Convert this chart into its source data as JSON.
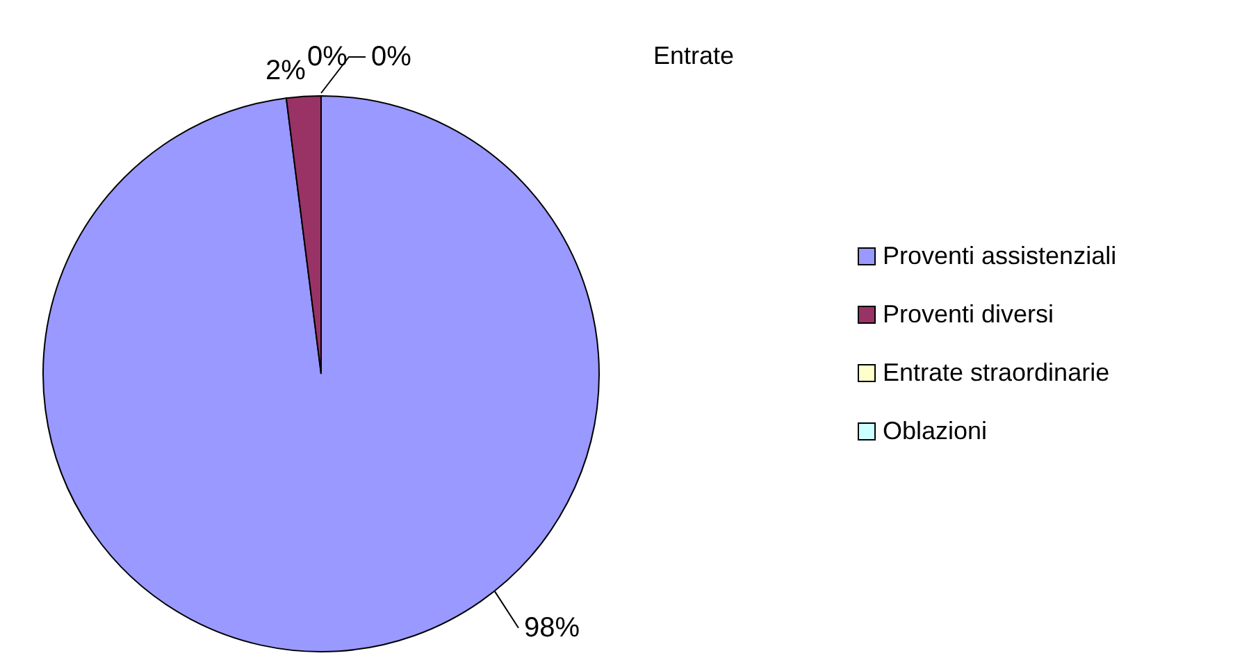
{
  "chart_data": {
    "type": "pie",
    "title": "Entrate",
    "categories": [
      "Proventi assistenziali",
      "Proventi diversi",
      "Entrate straordinarie",
      "Oblazioni"
    ],
    "values": [
      98,
      2,
      0,
      0
    ],
    "value_labels": [
      "98%",
      "2%",
      "0%",
      "0%"
    ],
    "colors": [
      "#9999ff",
      "#993366",
      "#ffffcc",
      "#ccffff"
    ],
    "legend": "right"
  }
}
